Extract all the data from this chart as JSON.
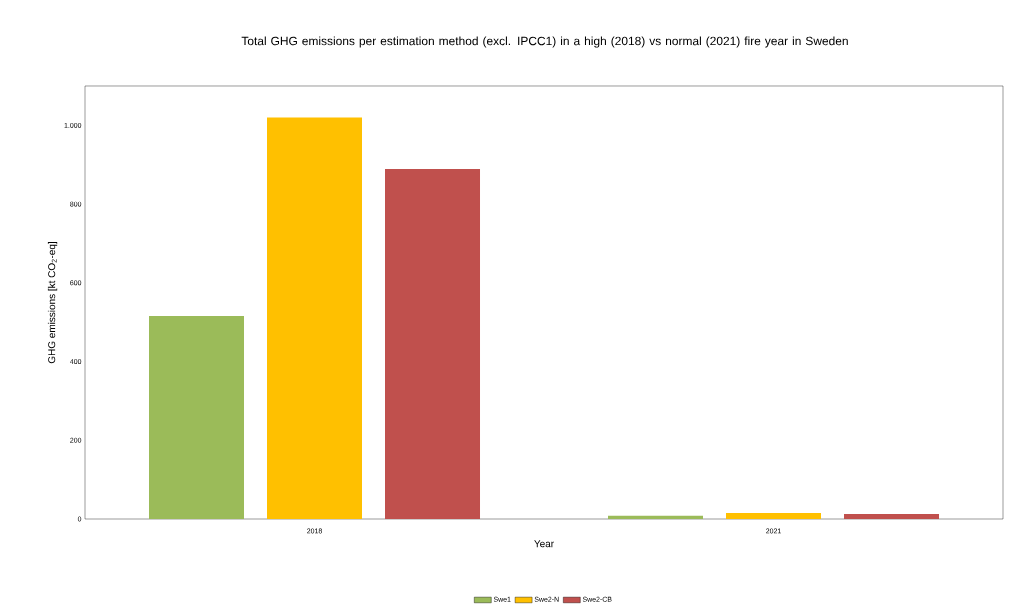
{
  "chart_data": {
    "type": "bar",
    "title": "Total GHG emissions per estimation method (excl. IPCC1) in a high (2018) vs normal (2021) fire year in Sweden",
    "xlabel": "Year",
    "ylabel": "GHG emissions [kt CO$_{2}$-eq]",
    "categories": [
      "2018",
      "2021"
    ],
    "series": [
      {
        "name": "Swe1",
        "color": "#9bbb59",
        "values": [
          516,
          8
        ]
      },
      {
        "name": "Swe2-N",
        "color": "#ffc000",
        "values": [
          1020,
          15
        ]
      },
      {
        "name": "Swe2-CB",
        "color": "#c0504d",
        "values": [
          889,
          13
        ]
      }
    ],
    "ylim": [
      0,
      1100
    ],
    "yticks": [
      0,
      200,
      400,
      600,
      800,
      {
        "value": 1000,
        "label": "1.000"
      }
    ],
    "grid": false,
    "legend": "bottom"
  }
}
